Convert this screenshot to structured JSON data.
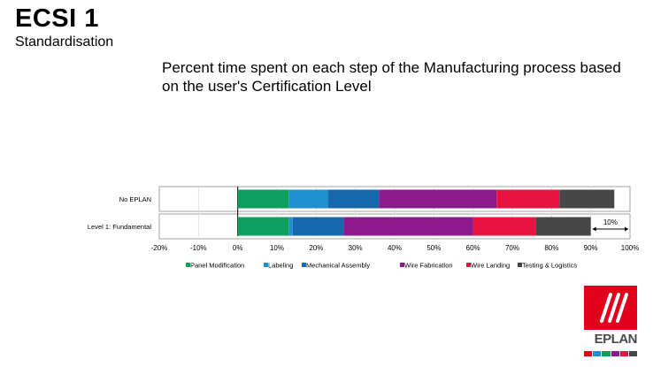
{
  "header": {
    "title": "ECSI 1",
    "subtitle": "Standardisation"
  },
  "chart_title": "Percent time spent on each step of the Manufacturing process based on the user's Certification Level",
  "chart_data": {
    "type": "bar",
    "orientation": "horizontal",
    "stacked": true,
    "categories": [
      "No EPLAN",
      "Level 1: Fundamental"
    ],
    "series": [
      {
        "name": "Panel Modification",
        "color": "#0e9f5e",
        "values": [
          13,
          13
        ]
      },
      {
        "name": "Labeling",
        "color": "#1f8fd0",
        "values": [
          10,
          1
        ]
      },
      {
        "name": "Mechanical Assembly",
        "color": "#1767ad",
        "values": [
          13,
          13
        ]
      },
      {
        "name": "Wire Fabrication",
        "color": "#8c1a8c",
        "values": [
          30,
          33
        ]
      },
      {
        "name": "Wire Landing",
        "color": "#e8143f",
        "values": [
          16,
          16
        ]
      },
      {
        "name": "Testing & Logistics",
        "color": "#474747",
        "values": [
          14,
          14
        ]
      }
    ],
    "xlim": [
      -20,
      100
    ],
    "xticks": [
      "-20%",
      "-10%",
      "0%",
      "10%",
      "20%",
      "30%",
      "40%",
      "50%",
      "60%",
      "70%",
      "80%",
      "90%",
      "100%"
    ],
    "annotations": [
      {
        "category": "Level 1: Fundamental",
        "text": "10%",
        "from": 90,
        "to": 100
      }
    ],
    "grid": true,
    "legend": "bottom"
  },
  "logo": {
    "text": "EPLAN",
    "strip_colors": [
      "#e2001a",
      "#1f8fd0",
      "#0e9f5e",
      "#8c1a8c",
      "#e8143f",
      "#474747"
    ]
  }
}
